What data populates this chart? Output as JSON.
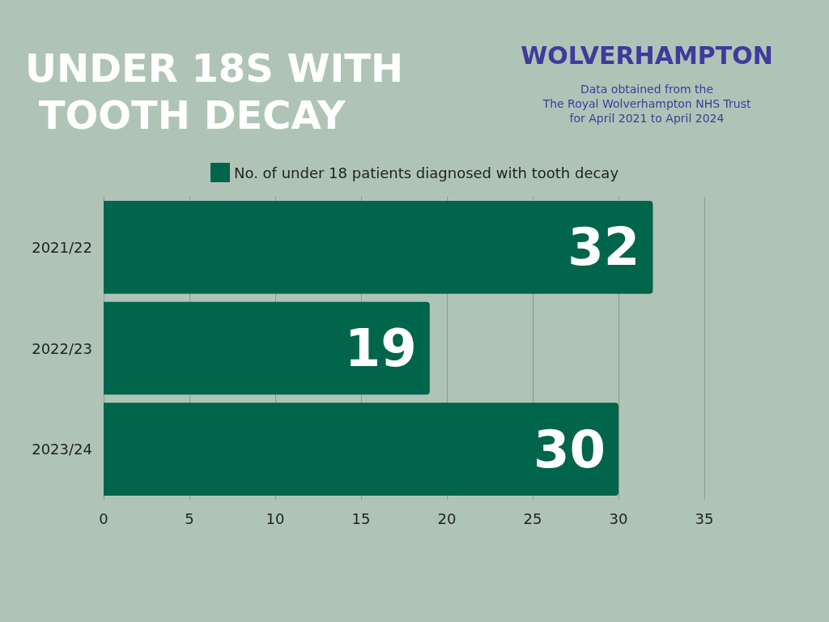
{
  "chart_data": {
    "type": "bar",
    "orientation": "horizontal",
    "title": "UNDER 18S WITH TOOTH DECAY",
    "subtitle": "WOLVERHAMPTON",
    "annotations": [
      "Data obtained from the\nThe Royal Wolverhampton NHS Trust\nfor April 2021 to April 2024"
    ],
    "categories": [
      "2021/22",
      "2022/23",
      "2023/24"
    ],
    "series": [
      {
        "name": "No. of under 18 patients diagnosed with tooth decay",
        "color": "#00654a",
        "values": [
          32,
          19,
          30
        ]
      }
    ],
    "xlim": [
      0,
      35
    ],
    "xticks": [
      0,
      5,
      10,
      15,
      20,
      25,
      30,
      35
    ],
    "grid": "x",
    "legend": "top",
    "data_labels": true
  }
}
